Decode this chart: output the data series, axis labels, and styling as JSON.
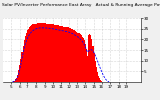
{
  "title": "Solar PV/Inverter Performance East Array   Actual & Running Average Power Output",
  "title_fontsize": 3.2,
  "bg_color": "#f0f0f0",
  "plot_bg_color": "#ffffff",
  "grid_color": "#aaaaaa",
  "bar_color": "#ff0000",
  "line_color": "#0000ff",
  "tick_fontsize": 3.0,
  "bar_values": [
    0.0,
    0.0,
    0.0,
    0.0,
    0.0,
    0.0,
    0.0,
    0.0,
    0.1,
    0.3,
    0.6,
    1.2,
    2.0,
    3.5,
    5.5,
    8.0,
    11.0,
    14.0,
    17.0,
    19.5,
    21.5,
    23.0,
    24.2,
    25.0,
    25.8,
    26.3,
    26.7,
    27.0,
    27.2,
    27.3,
    27.4,
    27.5,
    27.55,
    27.6,
    27.6,
    27.6,
    27.58,
    27.55,
    27.5,
    27.45,
    27.4,
    27.35,
    27.3,
    27.25,
    27.2,
    27.1,
    27.0,
    26.9,
    26.8,
    26.7,
    26.6,
    26.5,
    26.4,
    26.3,
    26.2,
    26.1,
    26.0,
    25.9,
    25.8,
    25.7,
    25.6,
    25.4,
    25.2,
    25.0,
    24.8,
    24.5,
    24.2,
    23.9,
    23.6,
    23.2,
    22.8,
    22.3,
    21.8,
    21.2,
    20.5,
    19.5,
    18.0,
    15.5,
    12.0,
    22.0,
    22.5,
    22.0,
    20.0,
    17.0,
    13.5,
    10.0,
    7.0,
    4.8,
    3.0,
    1.8,
    0.9,
    0.4,
    0.1,
    0.0,
    0.0,
    0.0,
    0.0,
    0.0,
    0.0,
    0.0,
    0.0,
    0.0,
    0.0,
    0.0,
    0.0,
    0.0,
    0.0,
    0.0,
    0.0,
    0.0,
    0.0,
    0.0,
    0.0,
    0.0,
    0.0,
    0.0,
    0.0,
    0.0,
    0.0,
    0.0,
    0.0,
    0.0,
    0.0,
    0.0,
    0.0,
    0.0,
    0.0,
    0.0
  ],
  "avg_values": [
    0.0,
    0.0,
    0.0,
    0.0,
    0.0,
    0.0,
    0.0,
    0.0,
    0.05,
    0.15,
    0.4,
    0.8,
    1.5,
    2.5,
    4.0,
    6.0,
    8.5,
    11.0,
    13.5,
    15.8,
    17.7,
    19.2,
    20.5,
    21.5,
    22.3,
    23.0,
    23.6,
    24.0,
    24.4,
    24.7,
    24.9,
    25.1,
    25.2,
    25.3,
    25.35,
    25.38,
    25.38,
    25.37,
    25.35,
    25.32,
    25.28,
    25.24,
    25.2,
    25.15,
    25.1,
    25.0,
    24.9,
    24.8,
    24.7,
    24.6,
    24.5,
    24.4,
    24.3,
    24.2,
    24.1,
    24.0,
    23.9,
    23.8,
    23.7,
    23.6,
    23.5,
    23.3,
    23.1,
    22.9,
    22.7,
    22.4,
    22.1,
    21.8,
    21.5,
    21.1,
    20.7,
    20.2,
    19.7,
    19.1,
    18.4,
    17.5,
    16.4,
    15.0,
    14.0,
    14.5,
    15.0,
    15.2,
    15.0,
    14.5,
    13.7,
    12.7,
    11.5,
    10.2,
    8.8,
    7.5,
    6.2,
    5.0,
    3.8,
    2.8,
    1.9,
    1.2,
    0.6,
    0.3,
    0.1,
    0.0,
    0.0,
    0.0,
    0.0,
    0.0,
    0.0,
    0.0,
    0.0,
    0.0,
    0.0,
    0.0,
    0.0,
    0.0,
    0.0,
    0.0,
    0.0,
    0.0,
    0.0,
    0.0,
    0.0,
    0.0,
    0.0,
    0.0,
    0.0,
    0.0,
    0.0,
    0.0,
    0.0,
    0.0
  ],
  "ylim": [
    0,
    30
  ],
  "yticks": [
    5,
    10,
    15,
    20,
    25,
    30
  ],
  "ytick_labels": [
    "5",
    "10",
    "15",
    "20",
    "25",
    "30"
  ],
  "xlim_start": 0,
  "xlim_end": 128,
  "xtick_positions": [
    7,
    15,
    22,
    30,
    38,
    46,
    53,
    61,
    68,
    76,
    84,
    91,
    99,
    107,
    114
  ],
  "xtick_labels": [
    "5",
    "6",
    "7",
    "8",
    "9",
    "10",
    "11",
    "12",
    "13",
    "14",
    "15",
    "16",
    "17",
    "18",
    "19"
  ],
  "figsize": [
    1.6,
    1.0
  ],
  "dpi": 100
}
